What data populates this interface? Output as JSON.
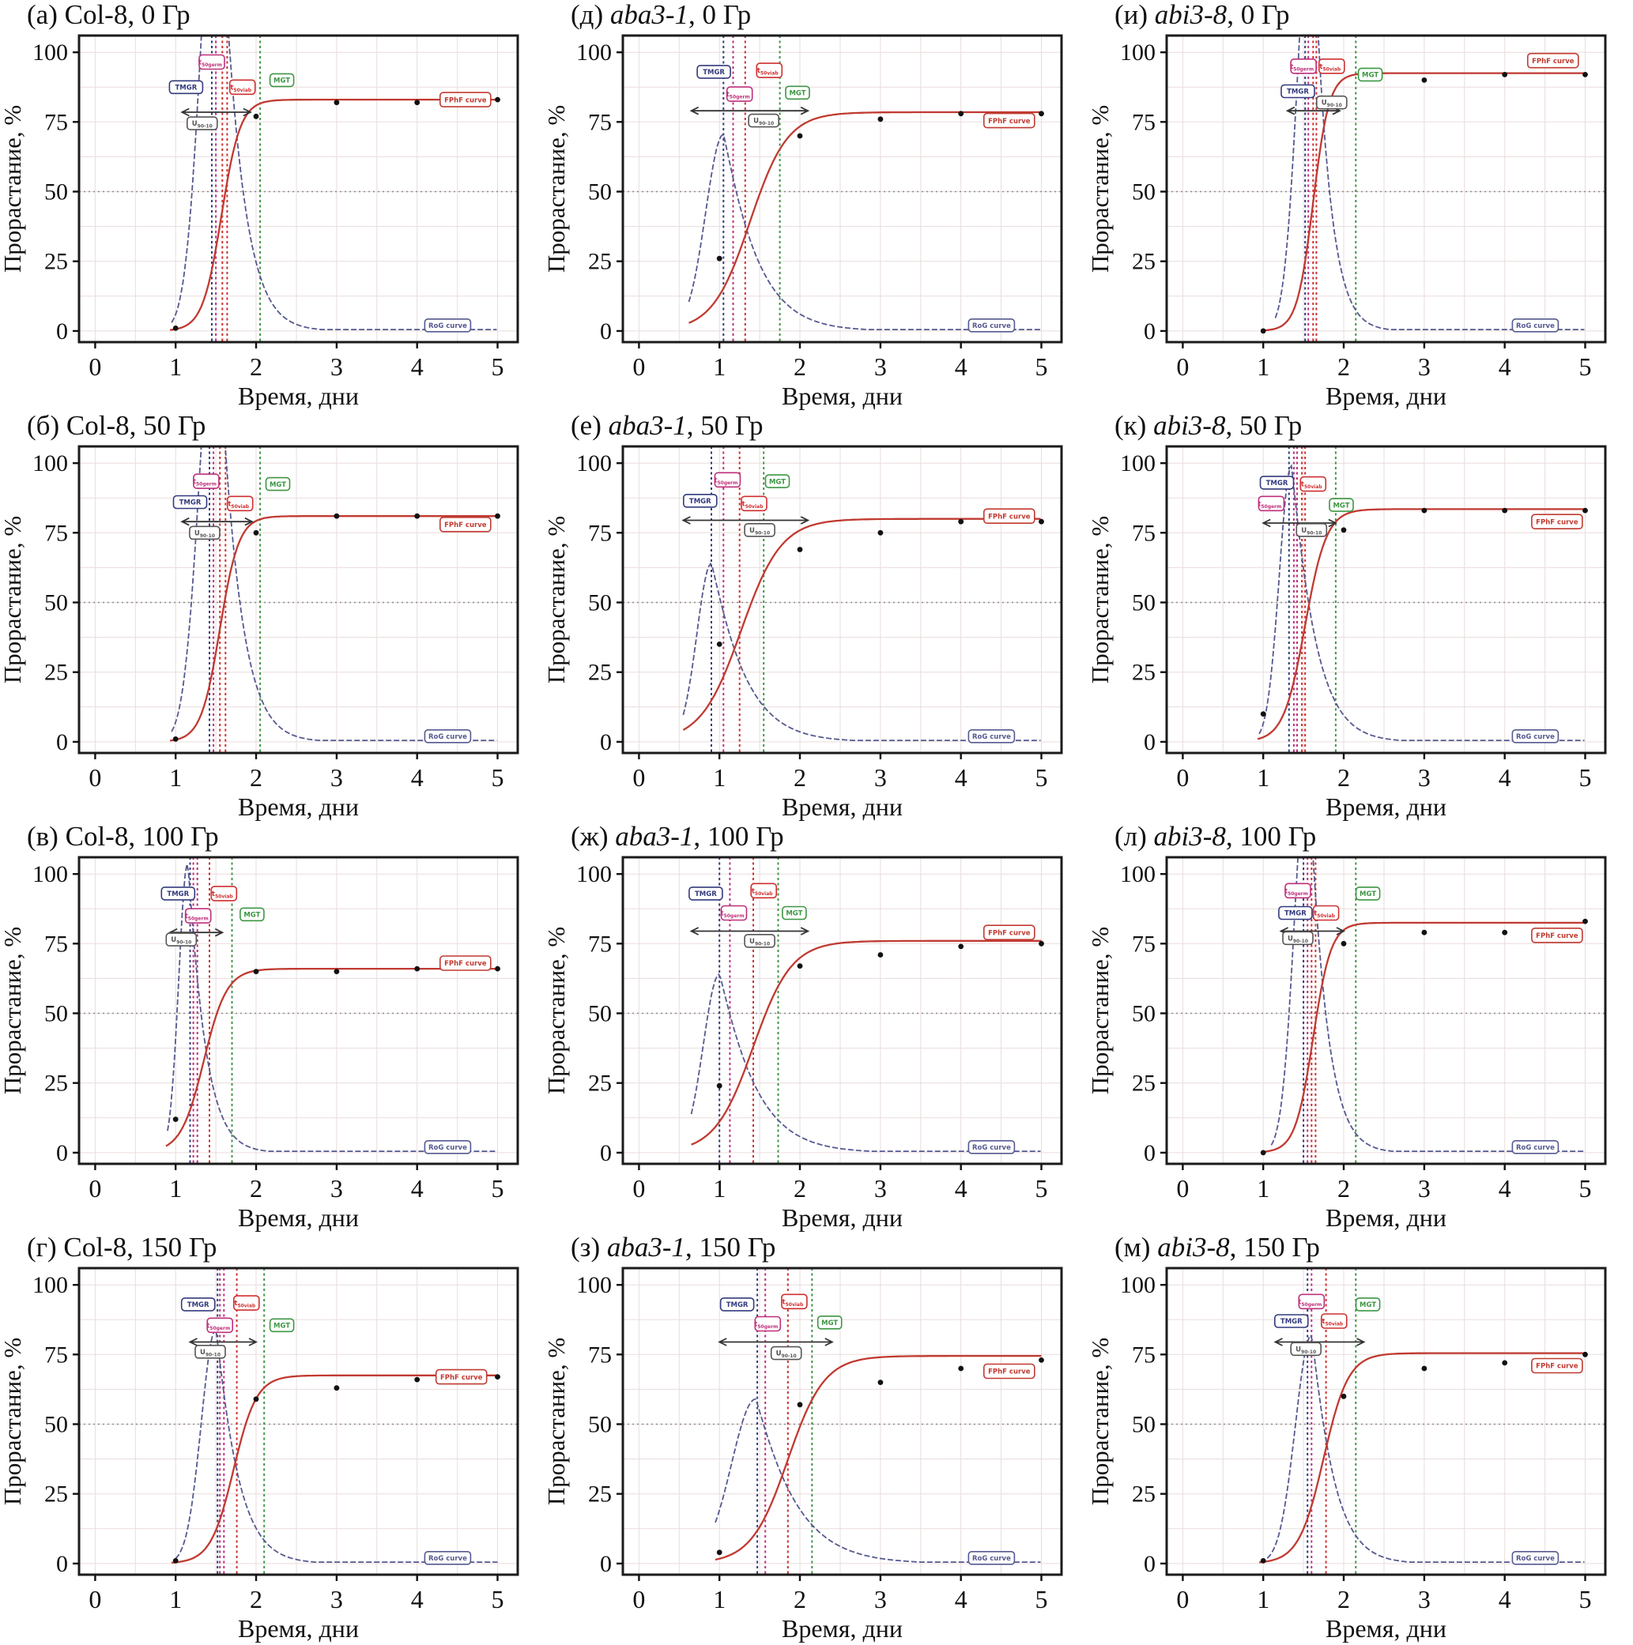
{
  "chart_data": {
    "type": "line",
    "xlabel": "Время, дни",
    "ylabel": "Прорастание, %",
    "xlim": [
      0,
      5
    ],
    "ylim": [
      0,
      100
    ],
    "xticks": [
      "0",
      "1",
      "2",
      "3",
      "4",
      "5"
    ],
    "yticks": [
      "0",
      "25",
      "50",
      "75",
      "100"
    ],
    "halfline_y": 50,
    "legend_labels": {
      "tmgr": "TMGR",
      "t50germ": "t50germ",
      "t50viab": "t50viab",
      "mgt": "MGT",
      "u9010": "U90-10",
      "fphf": "FPhF curve",
      "rog": "RoG curve"
    },
    "colors": {
      "fphf_curve": "#c03a31",
      "rog_curve": "#55598f",
      "tmgr": "#323a7d",
      "t50germ": "#bf2f7b",
      "t50viab": "#cf2f2f",
      "mgt": "#3c9643",
      "u9010": "#555555",
      "grid": "#eadcdc",
      "halfline": "#8a8a8a",
      "points": "#111111",
      "border": "#1b1b1b"
    },
    "panels": [
      {
        "letter": "(а)",
        "genotype": "Col-8",
        "genotype_italic": false,
        "dose": "0 Гр",
        "fphf": {
          "plateau": 83,
          "t50": 1.57,
          "k": 8.5,
          "start": 0.93
        },
        "rog": {
          "peak": 175,
          "tp": 1.52,
          "sl": 0.2,
          "tau": 0.26,
          "start": 0.95
        },
        "points": [
          [
            1,
            1
          ],
          [
            2,
            77
          ],
          [
            3,
            82
          ],
          [
            4,
            82
          ],
          [
            5,
            83
          ]
        ],
        "vlines": {
          "tmgr": [
            1.45
          ],
          "t50germ": [
            1.5
          ],
          "t50viab": [
            1.58,
            1.64
          ],
          "mgt": [
            2.05
          ]
        },
        "boxes": {
          "tmgr": [
            1.13,
            87.5
          ],
          "t50germ": [
            1.45,
            96.5
          ],
          "t50viab": [
            1.83,
            87.5
          ],
          "mgt": [
            2.32,
            90
          ],
          "u9010": [
            1.33,
            74.5
          ]
        },
        "arrow": [
          1.08,
          1.93,
          78.5
        ],
        "fphf_label": [
          4.6,
          83
        ],
        "rog_label": [
          4.38,
          2
        ]
      },
      {
        "letter": "(д)",
        "genotype": "aba3-1",
        "genotype_italic": true,
        "dose": "0 Гр",
        "fphf": {
          "plateau": 78.5,
          "t50": 1.38,
          "k": 4.3,
          "start": 0.62
        },
        "rog": {
          "peak": 70.5,
          "tp": 1.05,
          "sl": 0.22,
          "tau": 0.42,
          "start": 0.62
        },
        "points": [
          [
            1,
            26
          ],
          [
            2,
            70
          ],
          [
            3,
            76
          ],
          [
            4,
            78
          ],
          [
            5,
            78
          ]
        ],
        "vlines": {
          "tmgr": [
            1.05
          ],
          "t50germ": [
            1.17
          ],
          "t50viab": [
            1.32
          ],
          "mgt": [
            1.75
          ]
        },
        "boxes": {
          "tmgr": [
            0.93,
            93
          ],
          "t50germ": [
            1.25,
            85
          ],
          "t50viab": [
            1.62,
            93.5
          ],
          "mgt": [
            1.97,
            85.5
          ],
          "u9010": [
            1.55,
            75.5
          ]
        },
        "arrow": [
          0.65,
          2.1,
          79
        ],
        "fphf_label": [
          4.6,
          75.5
        ],
        "rog_label": [
          4.38,
          2
        ]
      },
      {
        "letter": "(и)",
        "genotype": "abi3-8",
        "genotype_italic": true,
        "dose": "0 Гр",
        "fphf": {
          "plateau": 92.5,
          "t50": 1.62,
          "k": 10,
          "start": 1.0
        },
        "rog": {
          "peak": 155,
          "tp": 1.6,
          "sl": 0.17,
          "tau": 0.2,
          "start": 1.15
        },
        "points": [
          [
            1,
            0
          ],
          [
            3,
            90
          ],
          [
            4,
            92
          ],
          [
            5,
            92
          ]
        ],
        "vlines": {
          "tmgr": [
            1.52
          ],
          "t50germ": [
            1.56
          ],
          "t50viab": [
            1.62,
            1.66
          ],
          "mgt": [
            2.15
          ]
        },
        "boxes": {
          "t50germ": [
            1.5,
            95
          ],
          "t50viab": [
            1.85,
            95
          ],
          "tmgr": [
            1.43,
            86
          ],
          "u9010": [
            1.85,
            82
          ],
          "mgt": [
            2.33,
            92
          ]
        },
        "arrow": [
          1.3,
          1.95,
          79
        ],
        "fphf_label": [
          4.6,
          97
        ],
        "rog_label": [
          4.38,
          2
        ]
      },
      {
        "letter": "(б)",
        "genotype": "Col-8",
        "genotype_italic": false,
        "dose": "50 Гр",
        "fphf": {
          "plateau": 81,
          "t50": 1.55,
          "k": 8.5,
          "start": 0.93
        },
        "rog": {
          "peak": 160,
          "tp": 1.5,
          "sl": 0.2,
          "tau": 0.26,
          "start": 0.95
        },
        "points": [
          [
            1,
            1
          ],
          [
            2,
            75
          ],
          [
            3,
            81
          ],
          [
            4,
            81
          ],
          [
            5,
            81
          ]
        ],
        "vlines": {
          "tmgr": [
            1.42
          ],
          "t50germ": [
            1.47
          ],
          "t50viab": [
            1.55,
            1.62
          ],
          "mgt": [
            2.05
          ]
        },
        "boxes": {
          "t50germ": [
            1.38,
            93.5
          ],
          "tmgr": [
            1.18,
            86
          ],
          "t50viab": [
            1.8,
            85.5
          ],
          "mgt": [
            2.27,
            92.5
          ],
          "u9010": [
            1.36,
            75
          ]
        },
        "arrow": [
          1.08,
          1.95,
          79
        ],
        "fphf_label": [
          4.6,
          78
        ],
        "rog_label": [
          4.38,
          2
        ]
      },
      {
        "letter": "(е)",
        "genotype": "aba3-1",
        "genotype_italic": true,
        "dose": "50 Гр",
        "fphf": {
          "plateau": 80,
          "t50": 1.27,
          "k": 4.0,
          "start": 0.55
        },
        "rog": {
          "peak": 64,
          "tp": 0.9,
          "sl": 0.18,
          "tau": 0.42,
          "start": 0.55
        },
        "points": [
          [
            1,
            35
          ],
          [
            2,
            69
          ],
          [
            3,
            75
          ],
          [
            4,
            79
          ],
          [
            5,
            79
          ]
        ],
        "vlines": {
          "tmgr": [
            0.9
          ],
          "t50germ": [
            1.05
          ],
          "t50viab": [
            1.25
          ],
          "mgt": [
            1.55
          ]
        },
        "boxes": {
          "t50germ": [
            1.1,
            94
          ],
          "tmgr": [
            0.76,
            86.5
          ],
          "t50viab": [
            1.43,
            85.5
          ],
          "mgt": [
            1.72,
            93.5
          ],
          "u9010": [
            1.5,
            76
          ]
        },
        "arrow": [
          0.55,
          2.1,
          79.5
        ],
        "fphf_label": [
          4.6,
          81
        ],
        "rog_label": [
          4.38,
          2
        ]
      },
      {
        "letter": "(к)",
        "genotype": "abi3-8",
        "genotype_italic": true,
        "dose": "50 Гр",
        "fphf": {
          "plateau": 83.5,
          "t50": 1.52,
          "k": 7.5,
          "start": 0.93
        },
        "rog": {
          "peak": 99,
          "tp": 1.35,
          "sl": 0.15,
          "tau": 0.3,
          "start": 0.95
        },
        "points": [
          [
            1,
            10
          ],
          [
            2,
            76
          ],
          [
            3,
            83
          ],
          [
            4,
            83
          ],
          [
            5,
            83
          ]
        ],
        "vlines": {
          "tmgr": [
            1.32
          ],
          "t50germ": [
            1.38,
            1.42
          ],
          "t50viab": [
            1.48,
            1.52
          ],
          "mgt": [
            1.9
          ]
        },
        "boxes": {
          "tmgr": [
            1.17,
            93
          ],
          "t50viab": [
            1.62,
            92.5
          ],
          "t50germ": [
            1.1,
            85.5
          ],
          "mgt": [
            1.97,
            85
          ],
          "u9010": [
            1.6,
            76
          ]
        },
        "arrow": [
          1.0,
          1.9,
          78.5
        ],
        "fphf_label": [
          4.65,
          79
        ],
        "rog_label": [
          4.38,
          2
        ]
      },
      {
        "letter": "(в)",
        "genotype": "Col-8",
        "genotype_italic": false,
        "dose": "100 Гр",
        "fphf": {
          "plateau": 66,
          "t50": 1.35,
          "k": 7,
          "start": 0.88
        },
        "rog": {
          "peak": 104,
          "tp": 1.15,
          "sl": 0.11,
          "tau": 0.22,
          "start": 0.9
        },
        "points": [
          [
            1,
            12
          ],
          [
            2,
            65
          ],
          [
            3,
            65
          ],
          [
            4,
            66
          ],
          [
            5,
            66
          ]
        ],
        "vlines": {
          "tmgr": [
            1.18
          ],
          "t50germ": [
            1.22,
            1.27
          ],
          "t50viab": [
            1.42
          ],
          "mgt": [
            1.7
          ]
        },
        "boxes": {
          "tmgr": [
            1.03,
            93
          ],
          "t50viab": [
            1.6,
            93
          ],
          "t50germ": [
            1.28,
            85
          ],
          "mgt": [
            1.95,
            85.5
          ],
          "u9010": [
            1.07,
            76.5
          ]
        },
        "arrow": [
          0.93,
          1.58,
          79
        ],
        "fphf_label": [
          4.6,
          68
        ],
        "rog_label": [
          4.38,
          2
        ]
      },
      {
        "letter": "(ж)",
        "genotype": "aba3-1",
        "genotype_italic": true,
        "dose": "100 Гр",
        "fphf": {
          "plateau": 76,
          "t50": 1.42,
          "k": 4.2,
          "start": 0.65
        },
        "rog": {
          "peak": 64,
          "tp": 1.0,
          "sl": 0.2,
          "tau": 0.45,
          "start": 0.65
        },
        "points": [
          [
            1,
            24
          ],
          [
            2,
            67
          ],
          [
            3,
            71
          ],
          [
            4,
            74
          ],
          [
            5,
            75
          ]
        ],
        "vlines": {
          "tmgr": [
            1.0
          ],
          "t50germ": [
            1.13
          ],
          "t50viab": [
            1.42
          ],
          "mgt": [
            1.73
          ]
        },
        "boxes": {
          "tmgr": [
            0.83,
            93
          ],
          "t50viab": [
            1.55,
            94
          ],
          "t50germ": [
            1.18,
            86
          ],
          "mgt": [
            1.93,
            86
          ],
          "u9010": [
            1.5,
            76
          ]
        },
        "arrow": [
          0.65,
          2.1,
          79.5
        ],
        "fphf_label": [
          4.6,
          79
        ],
        "rog_label": [
          4.38,
          2
        ]
      },
      {
        "letter": "(л)",
        "genotype": "abi3-8",
        "genotype_italic": true,
        "dose": "100 Гр",
        "fphf": {
          "plateau": 82.5,
          "t50": 1.62,
          "k": 9,
          "start": 1.0
        },
        "rog": {
          "peak": 140,
          "tp": 1.55,
          "sl": 0.16,
          "tau": 0.22,
          "start": 1.1
        },
        "points": [
          [
            1,
            0
          ],
          [
            2,
            75
          ],
          [
            3,
            79
          ],
          [
            4,
            79
          ],
          [
            5,
            83
          ]
        ],
        "vlines": {
          "tmgr": [
            1.5
          ],
          "t50germ": [
            1.55
          ],
          "t50viab": [
            1.6,
            1.65
          ],
          "mgt": [
            2.15
          ]
        },
        "boxes": {
          "t50germ": [
            1.43,
            94
          ],
          "tmgr": [
            1.4,
            86
          ],
          "t50viab": [
            1.78,
            86
          ],
          "mgt": [
            2.3,
            93
          ],
          "u9010": [
            1.43,
            77
          ]
        },
        "arrow": [
          1.22,
          2.0,
          79.5
        ],
        "fphf_label": [
          4.65,
          78
        ],
        "rog_label": [
          4.38,
          2
        ]
      },
      {
        "letter": "(г)",
        "genotype": "Col-8",
        "genotype_italic": false,
        "dose": "150 Гр",
        "fphf": {
          "plateau": 67.5,
          "t50": 1.72,
          "k": 7,
          "start": 0.95
        },
        "rog": {
          "peak": 84,
          "tp": 1.5,
          "sl": 0.18,
          "tau": 0.28,
          "start": 1.0
        },
        "points": [
          [
            1,
            1
          ],
          [
            2,
            59
          ],
          [
            3,
            63
          ],
          [
            4,
            66
          ],
          [
            5,
            67
          ]
        ],
        "vlines": {
          "tmgr": [
            1.52
          ],
          "t50germ": [
            1.55,
            1.6
          ],
          "t50viab": [
            1.76
          ],
          "mgt": [
            2.1
          ]
        },
        "boxes": {
          "tmgr": [
            1.28,
            93
          ],
          "t50viab": [
            1.88,
            93.5
          ],
          "t50germ": [
            1.55,
            85.5
          ],
          "mgt": [
            2.32,
            85.5
          ],
          "u9010": [
            1.43,
            76
          ]
        },
        "arrow": [
          1.18,
          2.0,
          79.5
        ],
        "fphf_label": [
          4.55,
          67
        ],
        "rog_label": [
          4.38,
          2
        ]
      },
      {
        "letter": "(з)",
        "genotype": "aba3-1",
        "genotype_italic": true,
        "dose": "150 Гр",
        "fphf": {
          "plateau": 74.5,
          "t50": 1.85,
          "k": 4.4,
          "start": 0.95
        },
        "rog": {
          "peak": 59,
          "tp": 1.45,
          "sl": 0.3,
          "tau": 0.5,
          "start": 0.95
        },
        "points": [
          [
            1,
            4
          ],
          [
            2,
            57
          ],
          [
            3,
            65
          ],
          [
            4,
            70
          ],
          [
            5,
            73
          ]
        ],
        "vlines": {
          "tmgr": [
            1.47
          ],
          "t50germ": [
            1.57
          ],
          "t50viab": [
            1.85
          ],
          "mgt": [
            2.15
          ]
        },
        "boxes": {
          "tmgr": [
            1.22,
            93
          ],
          "t50viab": [
            1.93,
            94
          ],
          "t50germ": [
            1.6,
            86
          ],
          "mgt": [
            2.37,
            86.5
          ],
          "u9010": [
            1.83,
            75.5
          ]
        },
        "arrow": [
          1.0,
          2.4,
          79.5
        ],
        "fphf_label": [
          4.6,
          69
        ],
        "rog_label": [
          4.38,
          2
        ]
      },
      {
        "letter": "(м)",
        "genotype": "abi3-8",
        "genotype_italic": true,
        "dose": "150 Гр",
        "fphf": {
          "plateau": 75.5,
          "t50": 1.75,
          "k": 6.5,
          "start": 0.95
        },
        "rog": {
          "peak": 82,
          "tp": 1.6,
          "sl": 0.2,
          "tau": 0.28,
          "start": 1.05
        },
        "points": [
          [
            1,
            1
          ],
          [
            2,
            60
          ],
          [
            3,
            70
          ],
          [
            4,
            72
          ],
          [
            5,
            75
          ]
        ],
        "vlines": {
          "tmgr": [
            1.55
          ],
          "t50germ": [
            1.6
          ],
          "t50viab": [
            1.78
          ],
          "mgt": [
            2.15
          ]
        },
        "boxes": {
          "t50germ": [
            1.6,
            94
          ],
          "tmgr": [
            1.35,
            87
          ],
          "t50viab": [
            1.88,
            87
          ],
          "mgt": [
            2.3,
            93
          ],
          "u9010": [
            1.53,
            77
          ]
        },
        "arrow": [
          1.15,
          2.25,
          79.5
        ],
        "fphf_label": [
          4.65,
          71
        ],
        "rog_label": [
          4.38,
          2
        ]
      }
    ]
  }
}
